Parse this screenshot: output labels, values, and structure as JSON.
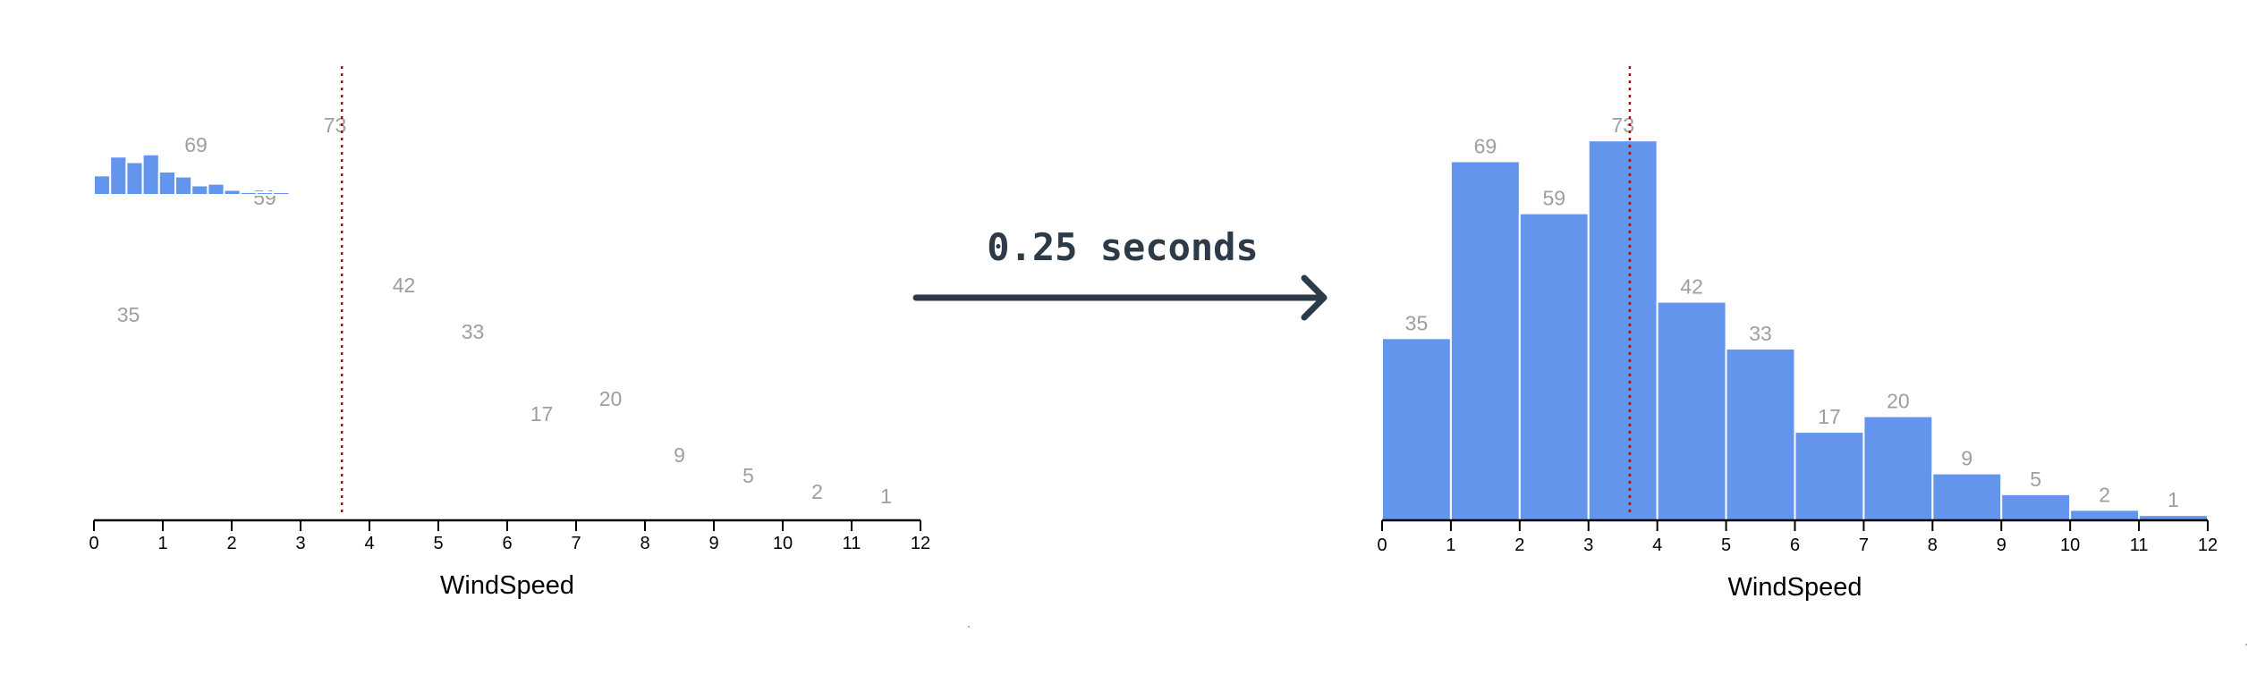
{
  "transition": {
    "label": "0.25 seconds"
  },
  "chart_data": [
    {
      "type": "bar",
      "state": "start",
      "x": [
        0.5,
        1.5,
        2.5,
        3.5,
        4.5,
        5.5,
        6.5,
        7.5,
        8.5,
        9.5,
        10.5,
        11.5
      ],
      "values": [
        35,
        69,
        59,
        73,
        42,
        33,
        17,
        20,
        9,
        5,
        2,
        1
      ],
      "bar_color": "#6495ed",
      "xlabel": "WindSpeed",
      "xlim": [
        0,
        12
      ],
      "xticks": [
        "0",
        "1",
        "2",
        "3",
        "4",
        "5",
        "6",
        "7",
        "8",
        "9",
        "10",
        "11",
        "12"
      ],
      "reference_line_x": 3.6,
      "reference_line_color": "#8b1a1a",
      "grid": false
    },
    {
      "type": "bar",
      "state": "end",
      "x": [
        0.5,
        1.5,
        2.5,
        3.5,
        4.5,
        5.5,
        6.5,
        7.5,
        8.5,
        9.5,
        10.5,
        11.5
      ],
      "values": [
        35,
        69,
        59,
        73,
        42,
        33,
        17,
        20,
        9,
        5,
        2,
        1
      ],
      "bar_color": "#6495ed",
      "xlabel": "WindSpeed",
      "xlim": [
        0,
        12
      ],
      "xticks": [
        "0",
        "1",
        "2",
        "3",
        "4",
        "5",
        "6",
        "7",
        "8",
        "9",
        "10",
        "11",
        "12"
      ],
      "reference_line_x": 3.6,
      "reference_line_color": "#8b1a1a",
      "grid": false
    }
  ]
}
